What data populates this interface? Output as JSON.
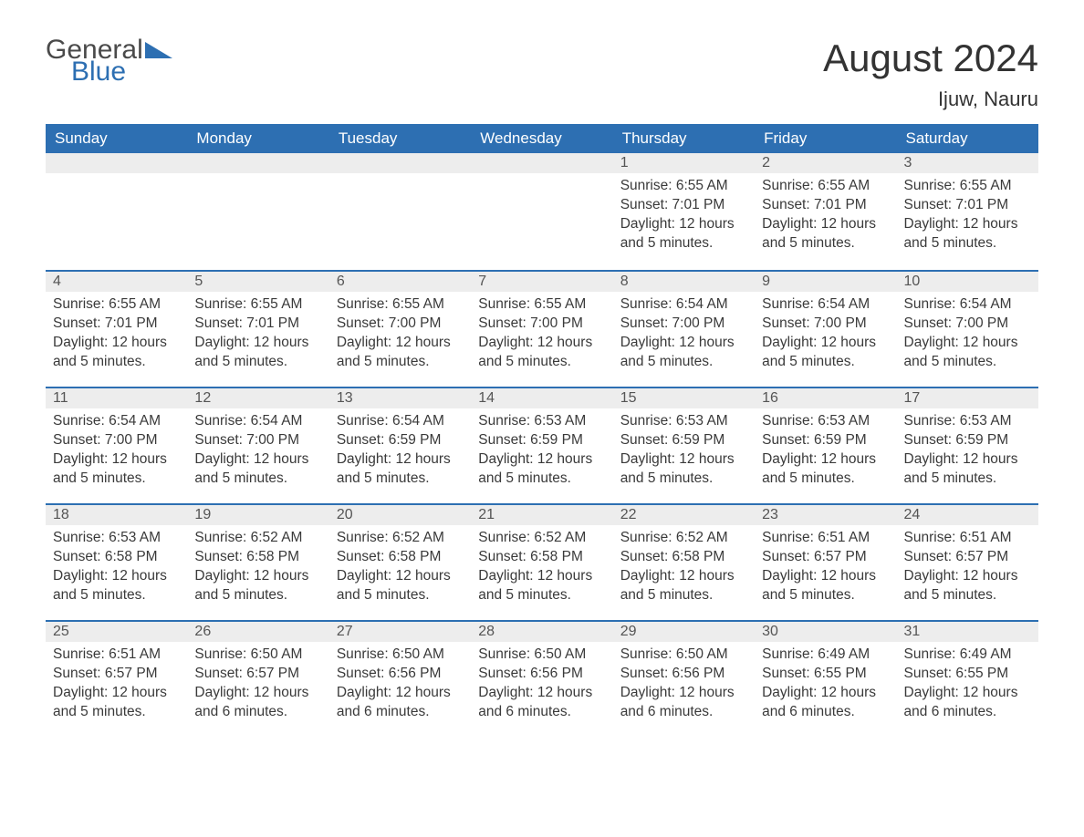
{
  "logo": {
    "text_general": "General",
    "text_blue": "Blue",
    "accent_color": "#2d6fb2",
    "text_color": "#4a4a4a"
  },
  "title": "August 2024",
  "location": "Ijuw, Nauru",
  "colors": {
    "header_bg": "#2d6fb2",
    "header_text": "#ffffff",
    "daybar_bg": "#ededed",
    "daybar_border": "#2d6fb2",
    "body_text": "#3a3a3a",
    "page_bg": "#ffffff"
  },
  "weekdays": [
    "Sunday",
    "Monday",
    "Tuesday",
    "Wednesday",
    "Thursday",
    "Friday",
    "Saturday"
  ],
  "weeks": [
    [
      null,
      null,
      null,
      null,
      {
        "n": "1",
        "sunrise": "Sunrise: 6:55 AM",
        "sunset": "Sunset: 7:01 PM",
        "daylight": "Daylight: 12 hours and 5 minutes."
      },
      {
        "n": "2",
        "sunrise": "Sunrise: 6:55 AM",
        "sunset": "Sunset: 7:01 PM",
        "daylight": "Daylight: 12 hours and 5 minutes."
      },
      {
        "n": "3",
        "sunrise": "Sunrise: 6:55 AM",
        "sunset": "Sunset: 7:01 PM",
        "daylight": "Daylight: 12 hours and 5 minutes."
      }
    ],
    [
      {
        "n": "4",
        "sunrise": "Sunrise: 6:55 AM",
        "sunset": "Sunset: 7:01 PM",
        "daylight": "Daylight: 12 hours and 5 minutes."
      },
      {
        "n": "5",
        "sunrise": "Sunrise: 6:55 AM",
        "sunset": "Sunset: 7:01 PM",
        "daylight": "Daylight: 12 hours and 5 minutes."
      },
      {
        "n": "6",
        "sunrise": "Sunrise: 6:55 AM",
        "sunset": "Sunset: 7:00 PM",
        "daylight": "Daylight: 12 hours and 5 minutes."
      },
      {
        "n": "7",
        "sunrise": "Sunrise: 6:55 AM",
        "sunset": "Sunset: 7:00 PM",
        "daylight": "Daylight: 12 hours and 5 minutes."
      },
      {
        "n": "8",
        "sunrise": "Sunrise: 6:54 AM",
        "sunset": "Sunset: 7:00 PM",
        "daylight": "Daylight: 12 hours and 5 minutes."
      },
      {
        "n": "9",
        "sunrise": "Sunrise: 6:54 AM",
        "sunset": "Sunset: 7:00 PM",
        "daylight": "Daylight: 12 hours and 5 minutes."
      },
      {
        "n": "10",
        "sunrise": "Sunrise: 6:54 AM",
        "sunset": "Sunset: 7:00 PM",
        "daylight": "Daylight: 12 hours and 5 minutes."
      }
    ],
    [
      {
        "n": "11",
        "sunrise": "Sunrise: 6:54 AM",
        "sunset": "Sunset: 7:00 PM",
        "daylight": "Daylight: 12 hours and 5 minutes."
      },
      {
        "n": "12",
        "sunrise": "Sunrise: 6:54 AM",
        "sunset": "Sunset: 7:00 PM",
        "daylight": "Daylight: 12 hours and 5 minutes."
      },
      {
        "n": "13",
        "sunrise": "Sunrise: 6:54 AM",
        "sunset": "Sunset: 6:59 PM",
        "daylight": "Daylight: 12 hours and 5 minutes."
      },
      {
        "n": "14",
        "sunrise": "Sunrise: 6:53 AM",
        "sunset": "Sunset: 6:59 PM",
        "daylight": "Daylight: 12 hours and 5 minutes."
      },
      {
        "n": "15",
        "sunrise": "Sunrise: 6:53 AM",
        "sunset": "Sunset: 6:59 PM",
        "daylight": "Daylight: 12 hours and 5 minutes."
      },
      {
        "n": "16",
        "sunrise": "Sunrise: 6:53 AM",
        "sunset": "Sunset: 6:59 PM",
        "daylight": "Daylight: 12 hours and 5 minutes."
      },
      {
        "n": "17",
        "sunrise": "Sunrise: 6:53 AM",
        "sunset": "Sunset: 6:59 PM",
        "daylight": "Daylight: 12 hours and 5 minutes."
      }
    ],
    [
      {
        "n": "18",
        "sunrise": "Sunrise: 6:53 AM",
        "sunset": "Sunset: 6:58 PM",
        "daylight": "Daylight: 12 hours and 5 minutes."
      },
      {
        "n": "19",
        "sunrise": "Sunrise: 6:52 AM",
        "sunset": "Sunset: 6:58 PM",
        "daylight": "Daylight: 12 hours and 5 minutes."
      },
      {
        "n": "20",
        "sunrise": "Sunrise: 6:52 AM",
        "sunset": "Sunset: 6:58 PM",
        "daylight": "Daylight: 12 hours and 5 minutes."
      },
      {
        "n": "21",
        "sunrise": "Sunrise: 6:52 AM",
        "sunset": "Sunset: 6:58 PM",
        "daylight": "Daylight: 12 hours and 5 minutes."
      },
      {
        "n": "22",
        "sunrise": "Sunrise: 6:52 AM",
        "sunset": "Sunset: 6:58 PM",
        "daylight": "Daylight: 12 hours and 5 minutes."
      },
      {
        "n": "23",
        "sunrise": "Sunrise: 6:51 AM",
        "sunset": "Sunset: 6:57 PM",
        "daylight": "Daylight: 12 hours and 5 minutes."
      },
      {
        "n": "24",
        "sunrise": "Sunrise: 6:51 AM",
        "sunset": "Sunset: 6:57 PM",
        "daylight": "Daylight: 12 hours and 5 minutes."
      }
    ],
    [
      {
        "n": "25",
        "sunrise": "Sunrise: 6:51 AM",
        "sunset": "Sunset: 6:57 PM",
        "daylight": "Daylight: 12 hours and 5 minutes."
      },
      {
        "n": "26",
        "sunrise": "Sunrise: 6:50 AM",
        "sunset": "Sunset: 6:57 PM",
        "daylight": "Daylight: 12 hours and 6 minutes."
      },
      {
        "n": "27",
        "sunrise": "Sunrise: 6:50 AM",
        "sunset": "Sunset: 6:56 PM",
        "daylight": "Daylight: 12 hours and 6 minutes."
      },
      {
        "n": "28",
        "sunrise": "Sunrise: 6:50 AM",
        "sunset": "Sunset: 6:56 PM",
        "daylight": "Daylight: 12 hours and 6 minutes."
      },
      {
        "n": "29",
        "sunrise": "Sunrise: 6:50 AM",
        "sunset": "Sunset: 6:56 PM",
        "daylight": "Daylight: 12 hours and 6 minutes."
      },
      {
        "n": "30",
        "sunrise": "Sunrise: 6:49 AM",
        "sunset": "Sunset: 6:55 PM",
        "daylight": "Daylight: 12 hours and 6 minutes."
      },
      {
        "n": "31",
        "sunrise": "Sunrise: 6:49 AM",
        "sunset": "Sunset: 6:55 PM",
        "daylight": "Daylight: 12 hours and 6 minutes."
      }
    ]
  ]
}
